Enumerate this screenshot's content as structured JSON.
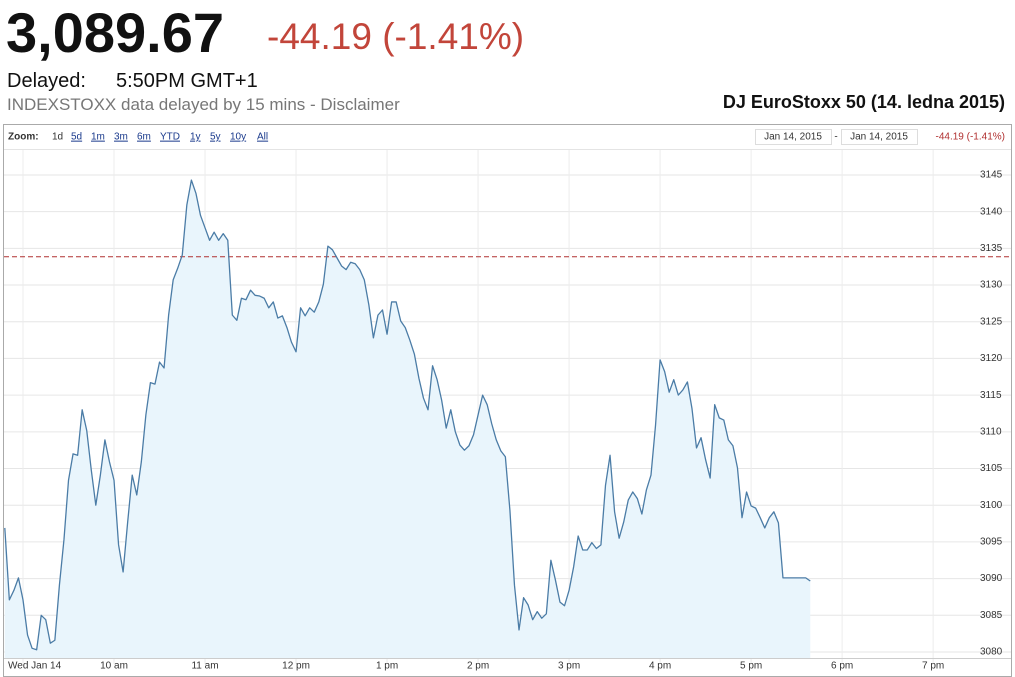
{
  "header": {
    "price": "3,089.67",
    "change": "-44.19 (-1.41%)",
    "delayed_label": "Delayed:",
    "delayed_time": "5:50PM GMT+1",
    "source_note": "INDEXSTOXX data delayed by 15 mins - Disclaimer"
  },
  "toolbar": {
    "zoom_label": "Zoom:",
    "zoom_options": [
      "1d",
      "5d",
      "1m",
      "3m",
      "6m",
      "YTD",
      "1y",
      "5y",
      "10y",
      "All"
    ],
    "range_from": "Jan 14, 2015",
    "range_separator": "-",
    "range_to": "Jan 14, 2015",
    "range_change": "-44.19 (-1.41%)"
  },
  "chart_data": {
    "type": "area",
    "title": "DJ EuroStoxx 50 (14. ledna 2015)",
    "color": "#4b7ca6",
    "fill_color": "#e9f5fc",
    "grid": true,
    "reference_line": {
      "value": 3133.86,
      "color": "#b03030"
    },
    "xlim": [
      8.8,
      19.46
    ],
    "ylim": [
      3079.18,
      3148.4
    ],
    "xticks": [
      {
        "value": 9,
        "label": "Wed Jan 14"
      },
      {
        "value": 10,
        "label": "10 am"
      },
      {
        "value": 11,
        "label": "11 am"
      },
      {
        "value": 12,
        "label": "12 pm"
      },
      {
        "value": 13,
        "label": "1 pm"
      },
      {
        "value": 14,
        "label": "2 pm"
      },
      {
        "value": 15,
        "label": "3 pm"
      },
      {
        "value": 16,
        "label": "4 pm"
      },
      {
        "value": 17,
        "label": "5 pm"
      },
      {
        "value": 18,
        "label": "6 pm"
      },
      {
        "value": 19,
        "label": "7 pm"
      }
    ],
    "yticks": [
      3080,
      3085,
      3090,
      3095,
      3100,
      3105,
      3110,
      3115,
      3120,
      3125,
      3130,
      3135,
      3140,
      3145
    ],
    "x": [
      8.8,
      8.85,
      8.9,
      8.95,
      9,
      9.05,
      9.1,
      9.15,
      9.2,
      9.25,
      9.3,
      9.35,
      9.4,
      9.45,
      9.5,
      9.55,
      9.6,
      9.65,
      9.7,
      9.75,
      9.8,
      9.85,
      9.9,
      9.95,
      10,
      10.05,
      10.1,
      10.15,
      10.2,
      10.25,
      10.3,
      10.35,
      10.4,
      10.45,
      10.5,
      10.55,
      10.6,
      10.65,
      10.7,
      10.75,
      10.8,
      10.85,
      10.9,
      10.95,
      11,
      11.05,
      11.1,
      11.15,
      11.2,
      11.25,
      11.3,
      11.35,
      11.4,
      11.45,
      11.5,
      11.55,
      11.6,
      11.65,
      11.7,
      11.75,
      11.8,
      11.85,
      11.9,
      11.95,
      12,
      12.05,
      12.1,
      12.15,
      12.2,
      12.25,
      12.3,
      12.35,
      12.4,
      12.45,
      12.5,
      12.55,
      12.6,
      12.65,
      12.7,
      12.75,
      12.8,
      12.85,
      12.9,
      12.95,
      13,
      13.05,
      13.1,
      13.15,
      13.2,
      13.25,
      13.3,
      13.35,
      13.4,
      13.45,
      13.5,
      13.55,
      13.6,
      13.65,
      13.7,
      13.75,
      13.8,
      13.85,
      13.9,
      13.95,
      14,
      14.05,
      14.1,
      14.15,
      14.2,
      14.25,
      14.3,
      14.35,
      14.4,
      14.45,
      14.5,
      14.55,
      14.6,
      14.65,
      14.7,
      14.75,
      14.8,
      14.85,
      14.9,
      14.95,
      15,
      15.05,
      15.1,
      15.15,
      15.2,
      15.25,
      15.3,
      15.35,
      15.4,
      15.45,
      15.5,
      15.55,
      15.6,
      15.65,
      15.7,
      15.75,
      15.8,
      15.85,
      15.9,
      15.95,
      16,
      16.05,
      16.1,
      16.15,
      16.2,
      16.25,
      16.3,
      16.35,
      16.4,
      16.45,
      16.5,
      16.55,
      16.6,
      16.65,
      16.7,
      16.75,
      16.8,
      16.85,
      16.9,
      16.95,
      17,
      17.05,
      17.1,
      17.15,
      17.2,
      17.25,
      17.3,
      17.35,
      17.4,
      17.45,
      17.5,
      17.55,
      17.6,
      17.65
    ],
    "values": [
      3096.9,
      3087.1,
      3088.4,
      3090.1,
      3087.1,
      3082.3,
      3080.5,
      3080.3,
      3085.0,
      3084.4,
      3081.2,
      3081.6,
      3089.1,
      3095.3,
      3103.4,
      3107.0,
      3106.8,
      3113.0,
      3110.2,
      3104.8,
      3100.0,
      3104.1,
      3108.9,
      3105.9,
      3103.4,
      3094.6,
      3090.9,
      3097.7,
      3104.1,
      3101.4,
      3105.9,
      3112.3,
      3116.7,
      3116.5,
      3119.5,
      3118.7,
      3125.9,
      3130.7,
      3132.3,
      3134.1,
      3140.9,
      3144.3,
      3142.5,
      3139.5,
      3137.8,
      3136.1,
      3137.2,
      3136.1,
      3137.0,
      3136.1,
      3125.9,
      3125.2,
      3128.2,
      3128.0,
      3129.3,
      3128.6,
      3128.5,
      3128.2,
      3126.9,
      3127.7,
      3125.5,
      3125.8,
      3124.2,
      3122.2,
      3120.9,
      3126.9,
      3125.8,
      3126.9,
      3126.3,
      3127.7,
      3130.1,
      3135.3,
      3134.8,
      3133.7,
      3132.6,
      3132.1,
      3133.1,
      3132.9,
      3132.1,
      3130.7,
      3127.3,
      3122.8,
      3125.9,
      3126.6,
      3123.3,
      3127.7,
      3127.7,
      3125.1,
      3124.2,
      3122.5,
      3120.6,
      3117.3,
      3114.6,
      3113.0,
      3119.0,
      3117.1,
      3114.3,
      3110.5,
      3113.0,
      3110.0,
      3108.2,
      3107.5,
      3108.1,
      3109.6,
      3112.3,
      3115.0,
      3113.7,
      3111.1,
      3108.9,
      3107.4,
      3106.6,
      3099.3,
      3089.1,
      3083.0,
      3087.4,
      3086.4,
      3084.4,
      3085.5,
      3084.6,
      3085.2,
      3092.5,
      3089.8,
      3086.8,
      3086.3,
      3088.4,
      3091.6,
      3095.8,
      3093.9,
      3093.9,
      3094.9,
      3094.1,
      3094.6,
      3102.7,
      3106.8,
      3099.1,
      3095.5,
      3097.7,
      3100.7,
      3101.8,
      3100.9,
      3098.8,
      3102.1,
      3104.1,
      3110.9,
      3119.8,
      3118.2,
      3115.4,
      3117.1,
      3115.0,
      3115.7,
      3116.8,
      3113.2,
      3107.8,
      3109.2,
      3106.2,
      3103.7,
      3113.7,
      3111.9,
      3111.6,
      3108.9,
      3108.1,
      3105.1,
      3098.3,
      3101.8,
      3099.9,
      3099.6,
      3098.3,
      3096.9,
      3098.3,
      3099.1,
      3097.6,
      3090.1,
      3090.1,
      3090.1,
      3090.1,
      3090.1,
      3090.1,
      3089.67
    ]
  }
}
